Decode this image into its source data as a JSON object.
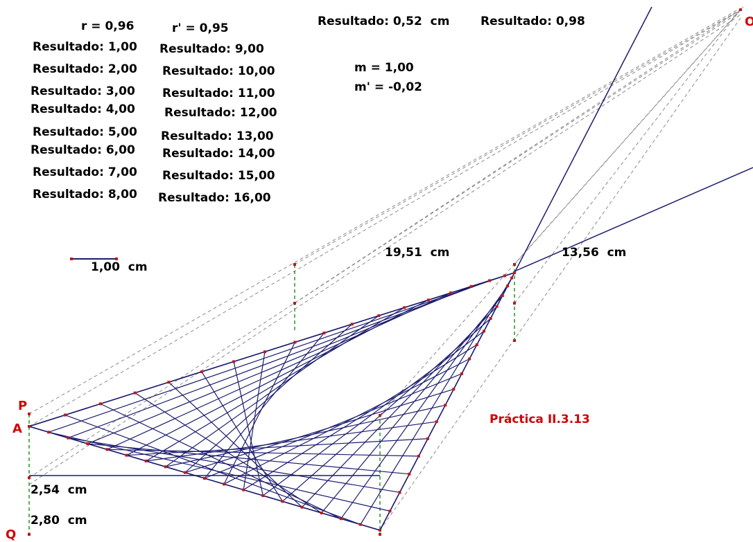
{
  "stats": {
    "r": "r = 0,96",
    "r_prime": "r' = 0,95",
    "m": "m = 1,00",
    "m_prime": "m' = -0,02"
  },
  "results_top": {
    "left": "Resultado: 0,52  cm",
    "right": "Resultado: 0,98"
  },
  "results_col1": [
    "Resultado: 1,00",
    "Resultado: 2,00",
    "Resultado: 3,00",
    "Resultado: 4,00",
    "Resultado: 5,00",
    "Resultado: 6,00",
    "Resultado: 7,00",
    "Resultado: 8,00"
  ],
  "results_col2": [
    "Resultado: 9,00",
    "Resultado: 10,00",
    "Resultado: 11,00",
    "Resultado: 12,00",
    "Resultado: 13,00",
    "Resultado: 14,00",
    "Resultado: 15,00",
    "Resultado: 16,00"
  ],
  "scale_label": "1,00  cm",
  "measures": {
    "top_left": "19,51  cm",
    "top_right": "13,56  cm",
    "left_upper": "2,54  cm",
    "left_lower": "2,80  cm"
  },
  "points": {
    "P": "P",
    "A": "A",
    "Q": "Q",
    "O": "O"
  },
  "title": "Práctica II.3.13",
  "colors": {
    "line": "#1a1a6e",
    "point": "#c01818",
    "dash_green": "#1a8a1a",
    "dash_gray": "#8a8a8a",
    "title": "#d40000"
  }
}
